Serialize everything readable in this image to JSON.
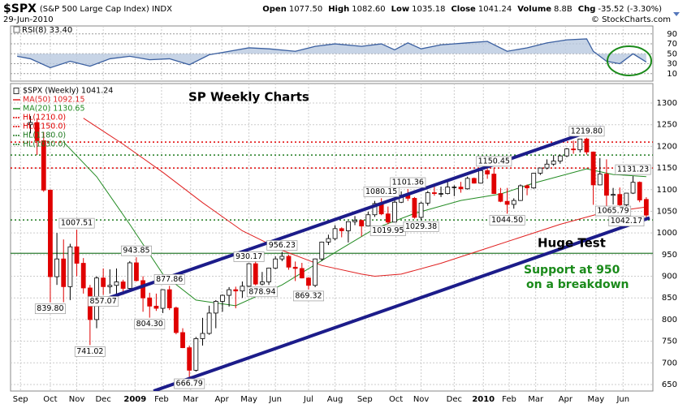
{
  "header": {
    "symbol": "$SPX",
    "name": "(S&P 500 Large Cap Index) INDX",
    "date": "29-Jun-2010",
    "quote": [
      {
        "label": "Open",
        "value": "1077.50"
      },
      {
        "label": "High",
        "value": "1082.60"
      },
      {
        "label": "Low",
        "value": "1035.18"
      },
      {
        "label": "Close",
        "value": "1041.24"
      },
      {
        "label": "Volume",
        "value": "8.8B"
      },
      {
        "label": "Chg",
        "value": "-35.52 (-3.30%)"
      }
    ],
    "credit": "© StockCharts.com"
  },
  "annotations": [
    "SP Weekly Charts",
    "Huge Test",
    "Support at 950",
    "on a breakdown"
  ],
  "chart_data": [
    {
      "type": "line",
      "title": "RSI(8) 33.40",
      "color": "#3a5fa0",
      "fill_color": "#b9c9e0",
      "x": [
        -2,
        0,
        3,
        6,
        9,
        12,
        15,
        18,
        21,
        24,
        27,
        30,
        33,
        36,
        40,
        43,
        46,
        50,
        53,
        55,
        57,
        59,
        62,
        66,
        69,
        72,
        75,
        78,
        81,
        84,
        85,
        87,
        89,
        91,
        93
      ],
      "values": [
        45,
        40,
        22,
        35,
        25,
        40,
        45,
        38,
        40,
        28,
        48,
        55,
        62,
        60,
        55,
        65,
        70,
        65,
        70,
        58,
        72,
        60,
        68,
        72,
        75,
        55,
        62,
        72,
        78,
        80,
        55,
        35,
        30,
        50,
        33.4
      ],
      "xlim": [
        -3,
        94
      ],
      "ylim": [
        -5,
        106
      ],
      "yticks": [
        90,
        70,
        50,
        30,
        10
      ]
    },
    {
      "type": "candlestick",
      "series": [
        {
          "name": "$SPX (Weekly) 1041.24",
          "up_color": "#000000",
          "down_color": "#e00000",
          "open": [
            1250,
            1255,
            1213,
            1099,
            899,
            940,
            876,
            968,
            930,
            873,
            800,
            896,
            876,
            879,
            887,
            872,
            931,
            890,
            850,
            831,
            826,
            869,
            827,
            770,
            735,
            683,
            756,
            768,
            815,
            842,
            856,
            869,
            866,
            877,
            929,
            882,
            887,
            919,
            940,
            946,
            921,
            918,
            896,
            879,
            940,
            979,
            987,
            1010,
            1005,
            1026,
            1029,
            1016,
            1042,
            1068,
            1044,
            1025,
            1071,
            1087,
            1080,
            1036,
            1069,
            1093,
            1091,
            1091,
            1106,
            1106,
            1102,
            1126,
            1115,
            1144,
            1136,
            1091,
            1073,
            1066,
            1075,
            1109,
            1104,
            1138,
            1150,
            1159,
            1166,
            1178,
            1194,
            1192,
            1217,
            1187,
            1111,
            1136,
            1087,
            1089,
            1065,
            1092,
            1117,
            1077.5
          ],
          "high": [
            1270,
            1265,
            1233,
            1100,
            1000,
            985,
            975,
            1007.51,
            942,
            880,
            900,
            918,
            916,
            918,
            892,
            935,
            943.85,
            900,
            862,
            860,
            870,
            877.86,
            830,
            780,
            740,
            760,
            804,
            832,
            845,
            858,
            875,
            876,
            888,
            930.17,
            934,
            910,
            920,
            946,
            956.23,
            950,
            934,
            931,
            898,
            941,
            980,
            996,
            1018,
            1013,
            1027,
            1039,
            1031,
            1049,
            1074,
            1080.15,
            1061,
            1076,
            1096,
            1101.36,
            1083,
            1072,
            1097,
            1114,
            1107,
            1119,
            1110,
            1118,
            1130,
            1128,
            1146,
            1149,
            1150.45,
            1104,
            1104,
            1080,
            1112,
            1112,
            1139,
            1150,
            1170,
            1180,
            1181,
            1196,
            1213,
            1217,
            1219.8,
            1188,
            1173,
            1170,
            1104,
            1105,
            1092,
            1131.23,
            1119,
            1082.6
          ],
          "low": [
            1230,
            1180,
            1095,
            839.8,
            880,
            840,
            845,
            900,
            860,
            741.02,
            780,
            857.07,
            860,
            857,
            857,
            870,
            888,
            818,
            804.3,
            820,
            815,
            822,
            766,
            734,
            666.79,
            680,
            740,
            765,
            780,
            818,
            830,
            826,
            850,
            868,
            879,
            878.94,
            880,
            917,
            935,
            915,
            889,
            895,
            869.32,
            875,
            935,
            972,
            983,
            990,
            978,
            1018,
            992,
            1015,
            1037,
            1041,
            1019.95,
            1025,
            1069,
            1074,
            1033,
            1029.38,
            1063,
            1086,
            1083,
            1089,
            1085,
            1093,
            1100,
            1114,
            1114,
            1125,
            1090,
            1071,
            1044.5,
            1056,
            1074,
            1087,
            1102,
            1134,
            1147,
            1155,
            1160,
            1175,
            1183,
            1186,
            1181,
            1065,
            1110,
            1055,
            1065.79,
            1060,
            1042.17,
            1090,
            1071,
            1035.18
          ],
          "close": [
            1255,
            1213,
            1099,
            899,
            940,
            876,
            968,
            930,
            873,
            800,
            896,
            876,
            879,
            887,
            872,
            931,
            890,
            850,
            831,
            826,
            869,
            827,
            770,
            735,
            683,
            756,
            768,
            815,
            842,
            856,
            869,
            866,
            877,
            929,
            882,
            887,
            919,
            940,
            946,
            921,
            918,
            896,
            879,
            940,
            979,
            987,
            1010,
            1005,
            1026,
            1029,
            1016,
            1042,
            1068,
            1044,
            1025,
            1071,
            1087,
            1080,
            1036,
            1069,
            1093,
            1091,
            1091,
            1106,
            1106,
            1102,
            1126,
            1115,
            1144,
            1136,
            1091,
            1073,
            1066,
            1075,
            1109,
            1104,
            1138,
            1150,
            1159,
            1166,
            1178,
            1194,
            1192,
            1217,
            1187,
            1111,
            1136,
            1087,
            1089,
            1065,
            1092,
            1117,
            1076,
            1041.24
          ]
        }
      ],
      "lines": [
        {
          "name": "MA(50) 1092.15",
          "color": "#e02020",
          "x": [
            8,
            14,
            20,
            26,
            32,
            38,
            44,
            50,
            52,
            56,
            62,
            68,
            74,
            80,
            86,
            93
          ],
          "values": [
            1265,
            1205,
            1140,
            1070,
            1005,
            960,
            925,
            905,
            900,
            905,
            930,
            960,
            990,
            1020,
            1045,
            1060
          ]
        },
        {
          "name": "MA(20) 1130.65",
          "color": "#228b22",
          "x": [
            5,
            10,
            15,
            20,
            25,
            31,
            38,
            46,
            52,
            58,
            65,
            71,
            76,
            84,
            88,
            93
          ],
          "values": [
            1210,
            1130,
            1020,
            905,
            845,
            832,
            880,
            955,
            1010,
            1045,
            1075,
            1090,
            1115,
            1148,
            1135,
            1130
          ]
        }
      ],
      "hlines": [
        {
          "name": "HL(1210.0)",
          "value": 1210,
          "color": "#e00000"
        },
        {
          "name": "HL(1150.0)",
          "value": 1150,
          "color": "#e00000"
        },
        {
          "name": "HL(1180.0)",
          "value": 1180,
          "color": "#1f7a1f"
        },
        {
          "name": "HL(1030.0)",
          "value": 1030,
          "color": "#1f7a1f"
        }
      ],
      "support_line": {
        "value": 953,
        "color": "#2e7d32"
      },
      "trend_lines": [
        {
          "x": [
            10.5,
            86.2
          ],
          "values": [
            843,
            1244
          ]
        },
        {
          "x": [
            18.6,
            93.5
          ],
          "values": [
            635,
            1035
          ]
        }
      ],
      "trend_color": "#1c1c8a",
      "price_labels": [
        {
          "x": 3,
          "value": 839.8,
          "label": "839.80"
        },
        {
          "x": 9,
          "value": 741.02
        },
        {
          "x": 7,
          "value": 1007.51
        },
        {
          "x": 16,
          "value": 943.85
        },
        {
          "x": 11,
          "value": 857.07
        },
        {
          "x": 21,
          "value": 877.86
        },
        {
          "x": 18,
          "value": 804.3,
          "label": "804.30"
        },
        {
          "x": 24,
          "value": 666.79
        },
        {
          "x": 33,
          "value": 930.17
        },
        {
          "x": 38,
          "value": 956.23
        },
        {
          "x": 35,
          "value": 878.94
        },
        {
          "x": 42,
          "value": 869.32
        },
        {
          "x": 53,
          "value": 1080.15
        },
        {
          "x": 54,
          "value": 1019.95
        },
        {
          "x": 57,
          "value": 1101.36
        },
        {
          "x": 59,
          "value": 1029.38
        },
        {
          "x": 70,
          "value": 1150.45
        },
        {
          "x": 72,
          "value": 1044.5,
          "label": "1044.50"
        },
        {
          "x": 84,
          "value": 1219.8,
          "label": "1219.80"
        },
        {
          "x": 88,
          "value": 1065.79
        },
        {
          "x": 91,
          "value": 1131.23
        },
        {
          "x": 90,
          "value": 1042.17
        }
      ],
      "xlim": [
        -3,
        94
      ],
      "ylim": [
        635,
        1345
      ],
      "yticks": [
        650,
        700,
        750,
        800,
        850,
        900,
        950,
        1000,
        1050,
        1100,
        1150,
        1200,
        1250,
        1300
      ],
      "xticks": [
        {
          "value": -1.5,
          "label": "Sep"
        },
        {
          "value": 3,
          "label": "Oct"
        },
        {
          "value": 7,
          "label": "Nov"
        },
        {
          "value": 11,
          "label": "Dec"
        },
        {
          "value": 15.8,
          "label": "2009"
        },
        {
          "value": 19.8,
          "label": "Feb"
        },
        {
          "value": 24.2,
          "label": "Mar"
        },
        {
          "value": 28.9,
          "label": "Apr"
        },
        {
          "value": 33,
          "label": "May"
        },
        {
          "value": 37,
          "label": "Jun"
        },
        {
          "value": 42,
          "label": "Jul"
        },
        {
          "value": 46,
          "label": "Aug"
        },
        {
          "value": 50.5,
          "label": "Sep"
        },
        {
          "value": 55.2,
          "label": "Oct"
        },
        {
          "value": 59,
          "label": "Nov"
        },
        {
          "value": 64,
          "label": "Dec"
        },
        {
          "value": 68.4,
          "label": "2010"
        },
        {
          "value": 72.3,
          "label": "Feb"
        },
        {
          "value": 76.3,
          "label": "Mar"
        },
        {
          "value": 80.8,
          "label": "Apr"
        },
        {
          "value": 85.4,
          "label": "May"
        },
        {
          "value": 89.5,
          "label": "Jun"
        }
      ],
      "grid": true
    }
  ]
}
